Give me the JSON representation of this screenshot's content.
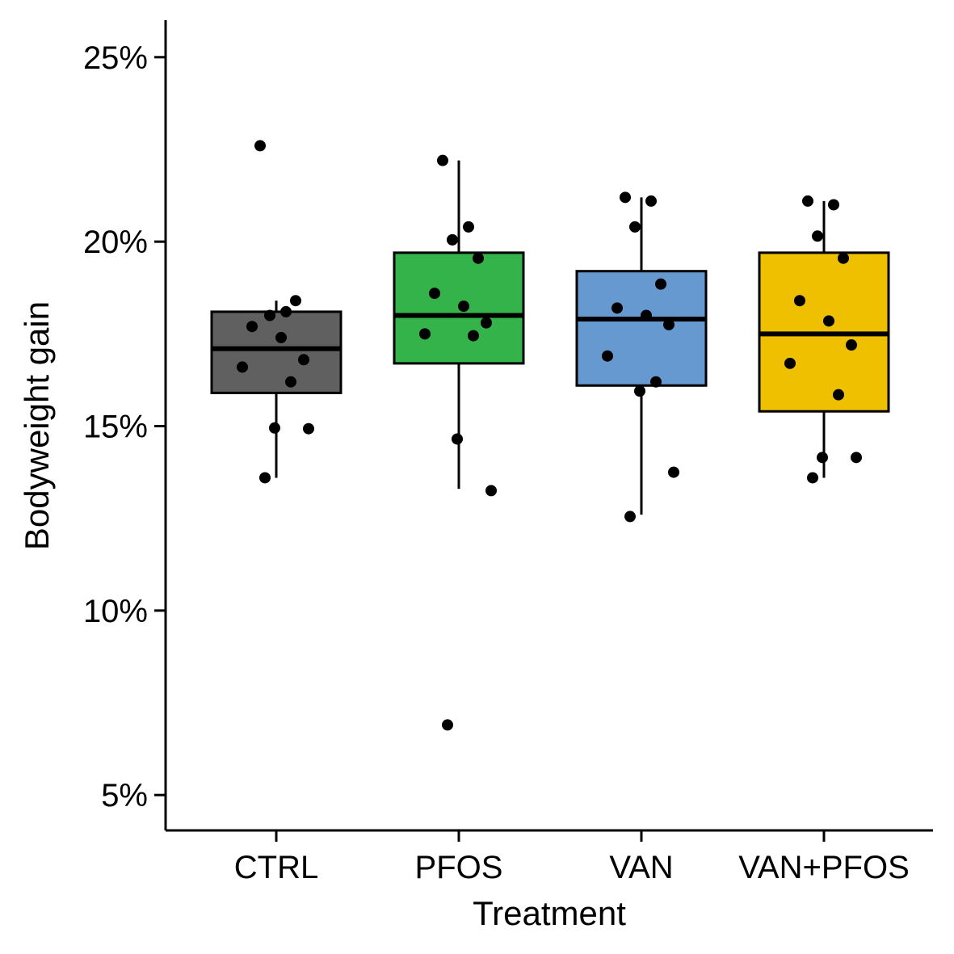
{
  "chart_data": {
    "type": "box",
    "xlabel": "Treatment",
    "ylabel": "Bodyweight gain",
    "ylim": [
      4.0,
      26.0
    ],
    "yticks": [
      {
        "value": 5,
        "label": "5%"
      },
      {
        "value": 10,
        "label": "10%"
      },
      {
        "value": 15,
        "label": "15%"
      },
      {
        "value": 20,
        "label": "20%"
      },
      {
        "value": 25,
        "label": "25%"
      }
    ],
    "categories": [
      "CTRL",
      "PFOS",
      "VAN",
      "VAN+PFOS"
    ],
    "colors": [
      "#606060",
      "#33b34a",
      "#6699d0",
      "#efc000"
    ],
    "boxes": [
      {
        "category": "CTRL",
        "whisker_low": 13.6,
        "q1": 15.9,
        "median": 17.1,
        "q3": 18.1,
        "whisker_high": 18.4
      },
      {
        "category": "PFOS",
        "whisker_low": 13.3,
        "q1": 16.7,
        "median": 18.0,
        "q3": 19.7,
        "whisker_high": 22.2
      },
      {
        "category": "VAN",
        "whisker_low": 12.6,
        "q1": 16.1,
        "median": 17.9,
        "q3": 19.2,
        "whisker_high": 21.2
      },
      {
        "category": "VAN+PFOS",
        "whisker_low": 13.6,
        "q1": 15.4,
        "median": 17.5,
        "q3": 19.7,
        "whisker_high": 21.1
      }
    ],
    "points": [
      {
        "category": "CTRL",
        "values": [
          22.6,
          18.1,
          18.0,
          18.4,
          17.7,
          17.4,
          16.8,
          16.6,
          16.2,
          14.95,
          14.93,
          13.6
        ]
      },
      {
        "category": "PFOS",
        "values": [
          22.2,
          20.4,
          20.05,
          19.55,
          18.6,
          18.25,
          17.8,
          17.5,
          17.45,
          14.65,
          13.25,
          6.9
        ]
      },
      {
        "category": "VAN",
        "values": [
          21.2,
          21.1,
          20.4,
          18.85,
          18.2,
          18.0,
          17.75,
          16.9,
          16.2,
          15.95,
          13.75,
          12.55
        ]
      },
      {
        "category": "VAN+PFOS",
        "values": [
          21.1,
          21.0,
          20.15,
          19.55,
          18.4,
          17.85,
          17.2,
          16.7,
          15.85,
          14.15,
          14.15,
          13.6
        ]
      }
    ]
  }
}
